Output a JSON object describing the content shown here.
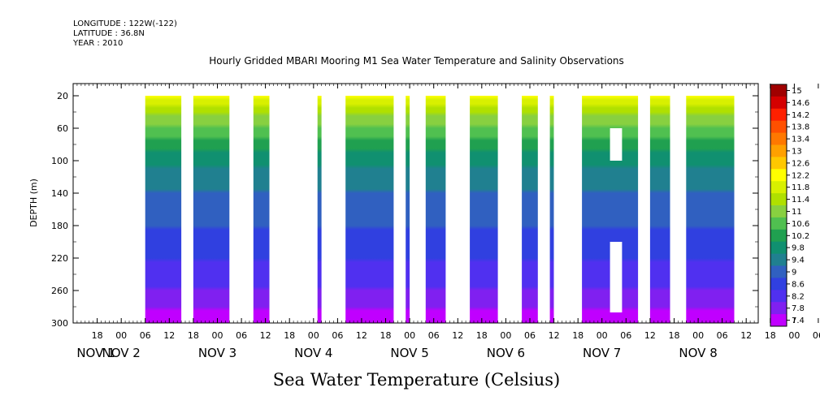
{
  "header": {
    "longitude": "LONGITUDE : 122W(-122)",
    "latitude": "LATITUDE : 36.8N",
    "year": "YEAR : 2010"
  },
  "title": "Hourly Gridded MBARI Mooring M1 Sea Water Temperature and Salinity Observations",
  "subtitle": "Sea Water Temperature (Celsius)",
  "chart_data": {
    "type": "heatmap",
    "ylabel": "DEPTH (m)",
    "ylim": [
      300,
      5
    ],
    "y_ticks": [
      20,
      60,
      100,
      140,
      180,
      220,
      260,
      300
    ],
    "x_hour_labels": [
      "18",
      "00",
      "06",
      "12",
      "18",
      "00",
      "06",
      "12",
      "18",
      "00",
      "06",
      "12",
      "18",
      "00",
      "06",
      "12",
      "18",
      "00",
      "06",
      "12",
      "18",
      "00",
      "06",
      "12",
      "18",
      "00",
      "06",
      "12",
      "18",
      "00",
      "06",
      "12"
    ],
    "x_day_labels": [
      "NOV  1",
      "NOV  2",
      "NOV  3",
      "NOV  4",
      "NOV  5",
      "NOV  6",
      "NOV  7",
      "NOV  8"
    ],
    "colorbar": {
      "levels": [
        "15",
        "14.6",
        "14.2",
        "13.8",
        "13.4",
        "13",
        "12.6",
        "12.2",
        "11.8",
        "11.4",
        "11",
        "10.6",
        "10.2",
        "9.8",
        "9.4",
        "9",
        "8.6",
        "8.2",
        "7.8",
        "7.4"
      ],
      "colors": [
        "#a00000",
        "#d40000",
        "#ff2000",
        "#ff5000",
        "#ff7800",
        "#ffa000",
        "#ffc800",
        "#ffff00",
        "#d8f000",
        "#b0e000",
        "#88d040",
        "#50c050",
        "#20a050",
        "#109070",
        "#208090",
        "#3060c0",
        "#3040e0",
        "#5030f0",
        "#8020f0",
        "#c000ff"
      ]
    },
    "data_blocks": [
      {
        "start": "Nov 2 06:00",
        "end": "Nov 2 15:00",
        "depth_range": [
          20,
          300
        ]
      },
      {
        "start": "Nov 2 18:00",
        "end": "Nov 3 03:00",
        "depth_range": [
          20,
          300
        ]
      },
      {
        "start": "Nov 3 09:00",
        "end": "Nov 3 13:00",
        "depth_range": [
          20,
          300
        ]
      },
      {
        "start": "Nov 4 01:00",
        "end": "Nov 4 02:00",
        "depth_range": [
          20,
          300
        ]
      },
      {
        "start": "Nov 4 08:00",
        "end": "Nov 4 20:00",
        "depth_range": [
          20,
          300
        ]
      },
      {
        "start": "Nov 4 23:00",
        "end": "Nov 5 00:00",
        "depth_range": [
          20,
          300
        ]
      },
      {
        "start": "Nov 5 04:00",
        "end": "Nov 5 09:00",
        "depth_range": [
          20,
          300
        ]
      },
      {
        "start": "Nov 5 15:00",
        "end": "Nov 5 22:00",
        "depth_range": [
          20,
          300
        ]
      },
      {
        "start": "Nov 6 04:00",
        "end": "Nov 6 08:00",
        "depth_range": [
          20,
          300
        ]
      },
      {
        "start": "Nov 6 11:00",
        "end": "Nov 6 12:00",
        "depth_range": [
          20,
          300
        ]
      },
      {
        "start": "Nov 6 19:00",
        "end": "Nov 7 09:00",
        "depth_range": [
          20,
          300
        ]
      },
      {
        "start": "Nov 7 12:00",
        "end": "Nov 7 17:00",
        "depth_range": [
          20,
          300
        ]
      },
      {
        "start": "Nov 7 21:00",
        "end": "Nov 8 09:00",
        "depth_range": [
          20,
          300
        ]
      }
    ],
    "data_gaps": [
      {
        "start": "Nov 7 02:00",
        "end": "Nov 7 05:00",
        "depth_range": [
          60,
          100
        ]
      },
      {
        "start": "Nov 7 02:00",
        "end": "Nov 7 05:00",
        "depth_range": [
          200,
          300
        ]
      }
    ],
    "temperature_profile": [
      {
        "depth": 20,
        "temp": 12.4
      },
      {
        "depth": 40,
        "temp": 11.5
      },
      {
        "depth": 60,
        "temp": 10.9
      },
      {
        "depth": 80,
        "temp": 10.3
      },
      {
        "depth": 100,
        "temp": 9.9
      },
      {
        "depth": 120,
        "temp": 9.6
      },
      {
        "depth": 160,
        "temp": 9.2
      },
      {
        "depth": 200,
        "temp": 8.8
      },
      {
        "depth": 240,
        "temp": 8.4
      },
      {
        "depth": 270,
        "temp": 8.0
      },
      {
        "depth": 300,
        "temp": 7.5
      }
    ]
  }
}
